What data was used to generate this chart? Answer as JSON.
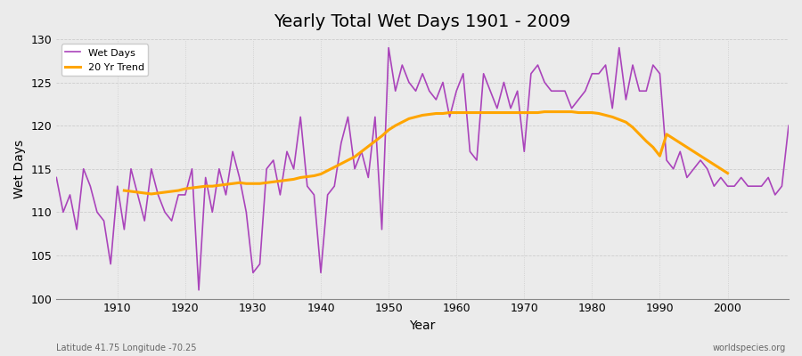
{
  "title": "Yearly Total Wet Days 1901 - 2009",
  "xlabel": "Year",
  "ylabel": "Wet Days",
  "xlim": [
    1901,
    2009
  ],
  "ylim": [
    100,
    130
  ],
  "yticks": [
    100,
    105,
    110,
    115,
    120,
    125,
    130
  ],
  "xticks": [
    1910,
    1920,
    1930,
    1940,
    1950,
    1960,
    1970,
    1980,
    1990,
    2000
  ],
  "wet_days_color": "#AA44BB",
  "trend_color": "#FFA500",
  "background_color": "#EBEBEB",
  "grid_color": "#CCCCCC",
  "legend_labels": [
    "Wet Days",
    "20 Yr Trend"
  ],
  "footer_left": "Latitude 41.75 Longitude -70.25",
  "footer_right": "worldspecies.org",
  "years": [
    1901,
    1902,
    1903,
    1904,
    1905,
    1906,
    1907,
    1908,
    1909,
    1910,
    1911,
    1912,
    1913,
    1914,
    1915,
    1916,
    1917,
    1918,
    1919,
    1920,
    1921,
    1922,
    1923,
    1924,
    1925,
    1926,
    1927,
    1928,
    1929,
    1930,
    1931,
    1932,
    1933,
    1934,
    1935,
    1936,
    1937,
    1938,
    1939,
    1940,
    1941,
    1942,
    1943,
    1944,
    1945,
    1946,
    1947,
    1948,
    1949,
    1950,
    1951,
    1952,
    1953,
    1954,
    1955,
    1956,
    1957,
    1958,
    1959,
    1960,
    1961,
    1962,
    1963,
    1964,
    1965,
    1966,
    1967,
    1968,
    1969,
    1970,
    1971,
    1972,
    1973,
    1974,
    1975,
    1976,
    1977,
    1978,
    1979,
    1980,
    1981,
    1982,
    1983,
    1984,
    1985,
    1986,
    1987,
    1988,
    1989,
    1990,
    1991,
    1992,
    1993,
    1994,
    1995,
    1996,
    1997,
    1998,
    1999,
    2000,
    2001,
    2002,
    2003,
    2004,
    2005,
    2006,
    2007,
    2008,
    2009
  ],
  "wet_days": [
    114,
    110,
    112,
    108,
    115,
    113,
    110,
    109,
    104,
    113,
    108,
    115,
    112,
    109,
    115,
    112,
    110,
    109,
    112,
    112,
    115,
    101,
    114,
    110,
    115,
    112,
    117,
    114,
    110,
    103,
    104,
    115,
    116,
    112,
    117,
    115,
    121,
    113,
    112,
    103,
    112,
    113,
    118,
    121,
    115,
    117,
    114,
    121,
    108,
    129,
    124,
    127,
    125,
    124,
    126,
    124,
    123,
    125,
    121,
    124,
    126,
    117,
    116,
    126,
    124,
    122,
    125,
    122,
    124,
    117,
    126,
    127,
    125,
    124,
    124,
    124,
    122,
    123,
    124,
    126,
    126,
    127,
    122,
    129,
    123,
    127,
    124,
    124,
    127,
    126,
    116,
    115,
    117,
    114,
    115,
    116,
    115,
    113,
    114,
    113,
    113,
    114,
    113,
    113,
    113,
    114,
    112,
    113,
    120
  ],
  "trend": [
    null,
    null,
    null,
    null,
    null,
    null,
    null,
    null,
    null,
    null,
    112.5,
    112.4,
    112.3,
    112.2,
    112.1,
    112.2,
    112.3,
    112.4,
    112.5,
    112.7,
    112.8,
    112.9,
    113.0,
    113.0,
    113.1,
    113.2,
    113.3,
    113.4,
    113.3,
    113.3,
    113.3,
    113.4,
    113.5,
    113.6,
    113.7,
    113.8,
    114.0,
    114.1,
    114.2,
    114.4,
    114.8,
    115.2,
    115.6,
    116.0,
    116.4,
    117.0,
    117.6,
    118.2,
    118.8,
    119.5,
    120.0,
    120.4,
    120.8,
    121.0,
    121.2,
    121.3,
    121.4,
    121.4,
    121.5,
    121.5,
    121.5,
    121.5,
    121.5,
    121.5,
    121.5,
    121.5,
    121.5,
    121.5,
    121.5,
    121.5,
    121.5,
    121.5,
    121.6,
    121.6,
    121.6,
    121.6,
    121.6,
    121.5,
    121.5,
    121.5,
    121.4,
    121.2,
    121.0,
    120.7,
    120.4,
    119.8,
    119.0,
    118.2,
    117.5,
    116.5,
    119.0,
    118.5,
    118.0,
    117.5,
    117.0,
    116.5,
    116.0,
    115.5,
    115.0,
    114.5,
    null,
    null,
    null,
    null,
    null,
    null,
    null,
    null,
    null
  ]
}
